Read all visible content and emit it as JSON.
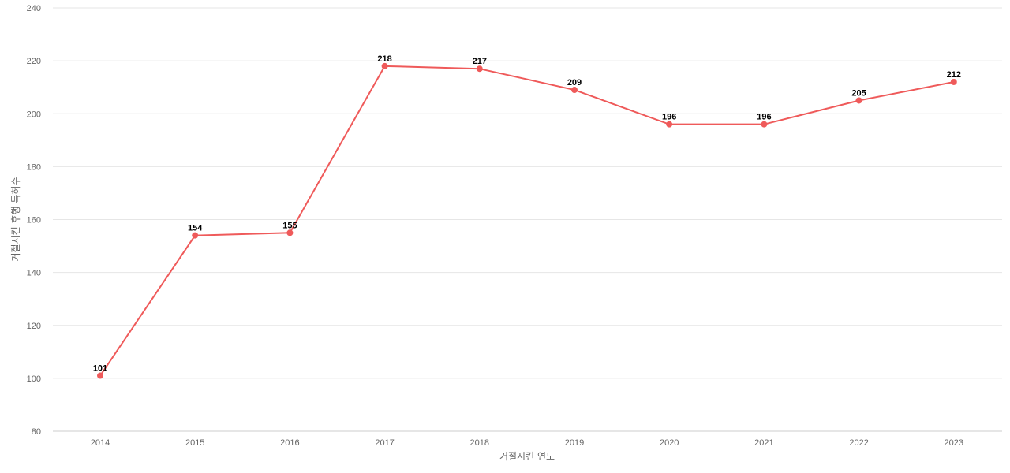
{
  "chart_data": {
    "type": "line",
    "title": "",
    "xlabel": "거절시킨 연도",
    "ylabel": "거절시킨 후행 특허수",
    "x": [
      "2014",
      "2015",
      "2016",
      "2017",
      "2018",
      "2019",
      "2020",
      "2021",
      "2022",
      "2023"
    ],
    "series": [
      {
        "values": [
          101,
          154,
          155,
          218,
          217,
          209,
          196,
          196,
          205,
          212
        ],
        "color": "#ef5a5a"
      }
    ],
    "ylim": [
      80,
      240
    ],
    "yticks": [
      80,
      100,
      120,
      140,
      160,
      180,
      200,
      220,
      240
    ],
    "grid": true,
    "legend": "none",
    "data_labels": true
  }
}
